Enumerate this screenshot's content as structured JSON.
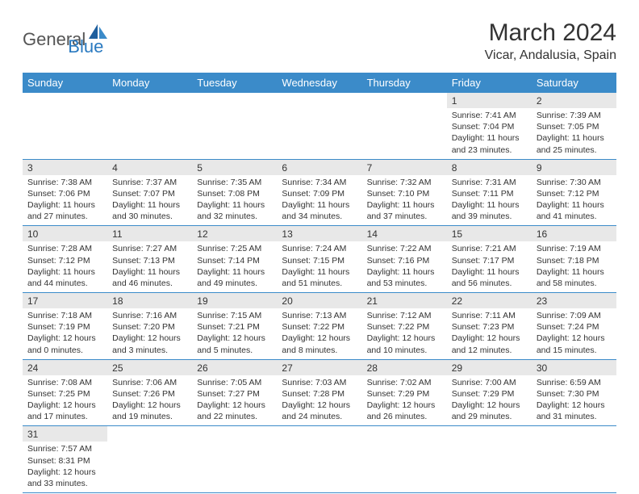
{
  "logo": {
    "text1": "General",
    "text2": "Blue"
  },
  "title": "March 2024",
  "location": "Vicar, Andalusia, Spain",
  "colors": {
    "header_bg": "#3b8bc9",
    "header_text": "#ffffff",
    "daynum_bg": "#e8e8e8",
    "row_border": "#3b8bc9",
    "text": "#333333",
    "logo_gray": "#555555",
    "logo_blue": "#2a7ac0"
  },
  "day_headers": [
    "Sunday",
    "Monday",
    "Tuesday",
    "Wednesday",
    "Thursday",
    "Friday",
    "Saturday"
  ],
  "weeks": [
    [
      null,
      null,
      null,
      null,
      null,
      {
        "d": "1",
        "sr": "7:41 AM",
        "ss": "7:04 PM",
        "dl": "11 hours and 23 minutes."
      },
      {
        "d": "2",
        "sr": "7:39 AM",
        "ss": "7:05 PM",
        "dl": "11 hours and 25 minutes."
      }
    ],
    [
      {
        "d": "3",
        "sr": "7:38 AM",
        "ss": "7:06 PM",
        "dl": "11 hours and 27 minutes."
      },
      {
        "d": "4",
        "sr": "7:37 AM",
        "ss": "7:07 PM",
        "dl": "11 hours and 30 minutes."
      },
      {
        "d": "5",
        "sr": "7:35 AM",
        "ss": "7:08 PM",
        "dl": "11 hours and 32 minutes."
      },
      {
        "d": "6",
        "sr": "7:34 AM",
        "ss": "7:09 PM",
        "dl": "11 hours and 34 minutes."
      },
      {
        "d": "7",
        "sr": "7:32 AM",
        "ss": "7:10 PM",
        "dl": "11 hours and 37 minutes."
      },
      {
        "d": "8",
        "sr": "7:31 AM",
        "ss": "7:11 PM",
        "dl": "11 hours and 39 minutes."
      },
      {
        "d": "9",
        "sr": "7:30 AM",
        "ss": "7:12 PM",
        "dl": "11 hours and 41 minutes."
      }
    ],
    [
      {
        "d": "10",
        "sr": "7:28 AM",
        "ss": "7:12 PM",
        "dl": "11 hours and 44 minutes."
      },
      {
        "d": "11",
        "sr": "7:27 AM",
        "ss": "7:13 PM",
        "dl": "11 hours and 46 minutes."
      },
      {
        "d": "12",
        "sr": "7:25 AM",
        "ss": "7:14 PM",
        "dl": "11 hours and 49 minutes."
      },
      {
        "d": "13",
        "sr": "7:24 AM",
        "ss": "7:15 PM",
        "dl": "11 hours and 51 minutes."
      },
      {
        "d": "14",
        "sr": "7:22 AM",
        "ss": "7:16 PM",
        "dl": "11 hours and 53 minutes."
      },
      {
        "d": "15",
        "sr": "7:21 AM",
        "ss": "7:17 PM",
        "dl": "11 hours and 56 minutes."
      },
      {
        "d": "16",
        "sr": "7:19 AM",
        "ss": "7:18 PM",
        "dl": "11 hours and 58 minutes."
      }
    ],
    [
      {
        "d": "17",
        "sr": "7:18 AM",
        "ss": "7:19 PM",
        "dl": "12 hours and 0 minutes."
      },
      {
        "d": "18",
        "sr": "7:16 AM",
        "ss": "7:20 PM",
        "dl": "12 hours and 3 minutes."
      },
      {
        "d": "19",
        "sr": "7:15 AM",
        "ss": "7:21 PM",
        "dl": "12 hours and 5 minutes."
      },
      {
        "d": "20",
        "sr": "7:13 AM",
        "ss": "7:22 PM",
        "dl": "12 hours and 8 minutes."
      },
      {
        "d": "21",
        "sr": "7:12 AM",
        "ss": "7:22 PM",
        "dl": "12 hours and 10 minutes."
      },
      {
        "d": "22",
        "sr": "7:11 AM",
        "ss": "7:23 PM",
        "dl": "12 hours and 12 minutes."
      },
      {
        "d": "23",
        "sr": "7:09 AM",
        "ss": "7:24 PM",
        "dl": "12 hours and 15 minutes."
      }
    ],
    [
      {
        "d": "24",
        "sr": "7:08 AM",
        "ss": "7:25 PM",
        "dl": "12 hours and 17 minutes."
      },
      {
        "d": "25",
        "sr": "7:06 AM",
        "ss": "7:26 PM",
        "dl": "12 hours and 19 minutes."
      },
      {
        "d": "26",
        "sr": "7:05 AM",
        "ss": "7:27 PM",
        "dl": "12 hours and 22 minutes."
      },
      {
        "d": "27",
        "sr": "7:03 AM",
        "ss": "7:28 PM",
        "dl": "12 hours and 24 minutes."
      },
      {
        "d": "28",
        "sr": "7:02 AM",
        "ss": "7:29 PM",
        "dl": "12 hours and 26 minutes."
      },
      {
        "d": "29",
        "sr": "7:00 AM",
        "ss": "7:29 PM",
        "dl": "12 hours and 29 minutes."
      },
      {
        "d": "30",
        "sr": "6:59 AM",
        "ss": "7:30 PM",
        "dl": "12 hours and 31 minutes."
      }
    ],
    [
      {
        "d": "31",
        "sr": "7:57 AM",
        "ss": "8:31 PM",
        "dl": "12 hours and 33 minutes."
      },
      null,
      null,
      null,
      null,
      null,
      null
    ]
  ],
  "labels": {
    "sunrise": "Sunrise:",
    "sunset": "Sunset:",
    "daylight": "Daylight:"
  }
}
